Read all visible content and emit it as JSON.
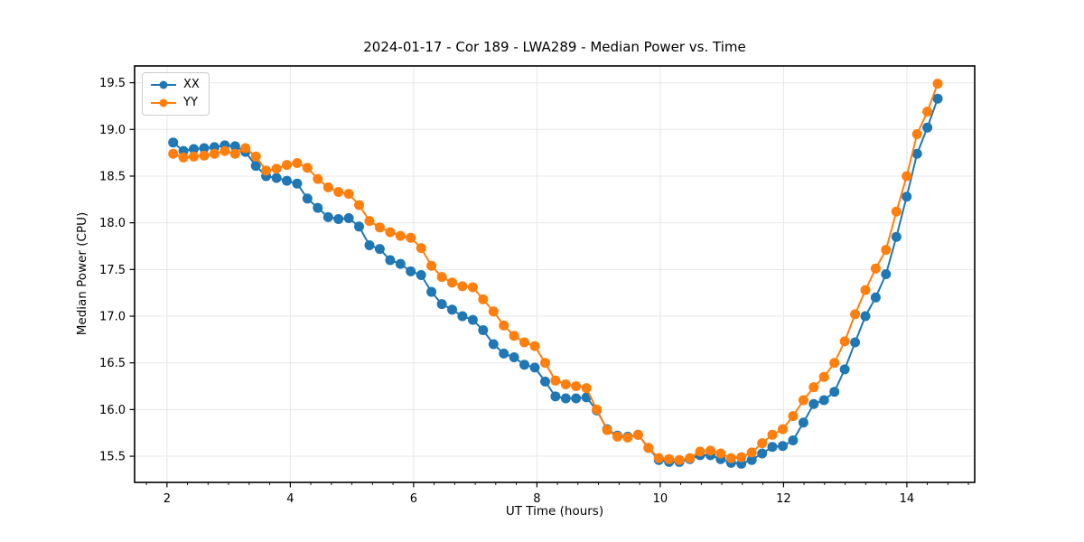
{
  "chart_data": {
    "type": "line",
    "title": "2024-01-17 - Cor 189 - LWA289 - Median Power vs. Time",
    "xlabel": "UT Time (hours)",
    "ylabel": "Median Power (CPU)",
    "xlim": [
      1.475,
      15.1
    ],
    "ylim": [
      15.22,
      19.68
    ],
    "xticks": [
      2,
      4,
      6,
      8,
      10,
      12,
      14
    ],
    "yticks": [
      15.5,
      16.0,
      16.5,
      17.0,
      17.5,
      18.0,
      18.5,
      19.0,
      19.5
    ],
    "x_minor_step": 0.3333,
    "grid": true,
    "legend_position": "upper left",
    "marker": "circle",
    "x": [
      2.1,
      2.268,
      2.435,
      2.603,
      2.77,
      2.938,
      3.105,
      3.273,
      3.441,
      3.608,
      3.776,
      3.943,
      4.111,
      4.278,
      4.446,
      4.614,
      4.781,
      4.949,
      5.116,
      5.284,
      5.451,
      5.619,
      5.787,
      5.954,
      6.122,
      6.289,
      6.457,
      6.624,
      6.792,
      6.96,
      7.127,
      7.295,
      7.462,
      7.63,
      7.797,
      7.965,
      8.133,
      8.3,
      8.468,
      8.635,
      8.803,
      8.97,
      9.138,
      9.306,
      9.473,
      9.641,
      9.808,
      9.976,
      10.143,
      10.311,
      10.479,
      10.646,
      10.814,
      10.981,
      11.149,
      11.316,
      11.484,
      11.652,
      11.819,
      11.987,
      12.154,
      12.322,
      12.489,
      12.657,
      12.825,
      12.992,
      13.16,
      13.327,
      13.495,
      13.662,
      13.83,
      13.997,
      14.165,
      14.332,
      14.5
    ],
    "series": [
      {
        "name": "XX",
        "color": "#1f77b4",
        "values": [
          18.86,
          18.77,
          18.79,
          18.8,
          18.81,
          18.83,
          18.82,
          18.76,
          18.61,
          18.5,
          18.48,
          18.45,
          18.42,
          18.26,
          18.16,
          18.06,
          18.04,
          18.05,
          17.96,
          17.76,
          17.72,
          17.6,
          17.56,
          17.48,
          17.44,
          17.26,
          17.13,
          17.07,
          17.0,
          16.96,
          16.85,
          16.7,
          16.6,
          16.56,
          16.48,
          16.45,
          16.3,
          16.14,
          16.12,
          16.12,
          16.13,
          15.99,
          15.79,
          15.72,
          15.71,
          15.73,
          15.59,
          15.46,
          15.44,
          15.44,
          15.47,
          15.51,
          15.51,
          15.47,
          15.43,
          15.42,
          15.46,
          15.53,
          15.6,
          15.61,
          15.67,
          15.86,
          16.06,
          16.1,
          16.19,
          16.43,
          16.72,
          17.0,
          17.2,
          17.45,
          17.85,
          18.28,
          18.74,
          19.02,
          19.33
        ]
      },
      {
        "name": "YY",
        "color": "#ff7f0e",
        "values": [
          18.74,
          18.7,
          18.71,
          18.72,
          18.74,
          18.77,
          18.74,
          18.8,
          18.71,
          18.56,
          18.58,
          18.62,
          18.64,
          18.59,
          18.47,
          18.38,
          18.33,
          18.31,
          18.19,
          18.02,
          17.95,
          17.9,
          17.86,
          17.84,
          17.73,
          17.54,
          17.42,
          17.36,
          17.32,
          17.31,
          17.18,
          17.05,
          16.9,
          16.79,
          16.72,
          16.68,
          16.5,
          16.31,
          16.27,
          16.25,
          16.23,
          16.0,
          15.78,
          15.71,
          15.7,
          15.73,
          15.59,
          15.48,
          15.47,
          15.46,
          15.48,
          15.55,
          15.56,
          15.53,
          15.48,
          15.49,
          15.54,
          15.64,
          15.73,
          15.79,
          15.93,
          16.1,
          16.24,
          16.35,
          16.5,
          16.73,
          17.02,
          17.28,
          17.51,
          17.71,
          18.12,
          18.5,
          18.95,
          19.19,
          19.49
        ]
      }
    ]
  },
  "style": {
    "grid_color": "#e7e7e7",
    "spine_color": "#000000",
    "tick_color": "#000000",
    "text_color": "#000000"
  }
}
